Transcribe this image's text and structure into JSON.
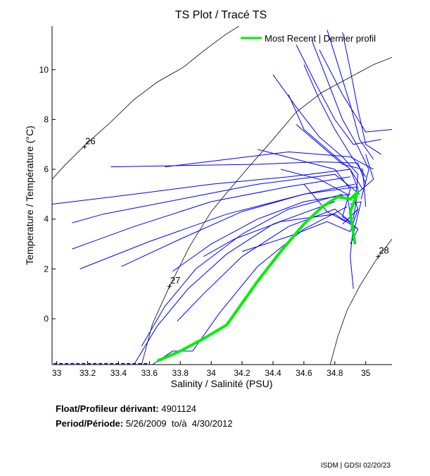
{
  "chart_data": {
    "type": "line",
    "title": "TS Plot / Tracé TS",
    "xlabel": "Salinity / Salinité (PSU)",
    "ylabel": "Temperature / Température (°C)",
    "xlim": [
      32.97,
      35.17
    ],
    "ylim": [
      -1.84,
      11.75
    ],
    "xticks": [
      33,
      33.2,
      33.4,
      33.6,
      33.8,
      34,
      34.2,
      34.4,
      34.6,
      34.8,
      35
    ],
    "xtick_labels": [
      "33",
      "33.2",
      "33.4",
      "33.6",
      "33.8",
      "34",
      "34.2",
      "34.4",
      "34.6",
      "34.8",
      "35"
    ],
    "yticks": [
      0,
      2,
      4,
      6,
      8,
      10
    ],
    "ytick_labels": [
      "0",
      "2",
      "4",
      "6",
      "8",
      "10"
    ],
    "grid": false,
    "legend": {
      "position": "top-right",
      "entries": [
        {
          "label": "Most Recent | Dernier profil",
          "color": "#00ee00"
        }
      ]
    },
    "isopycnals": [
      {
        "label": "26",
        "label_at": [
          33.18,
          6.9
        ],
        "points": [
          [
            32.97,
            5.6
          ],
          [
            33.05,
            6.15
          ],
          [
            33.18,
            6.95
          ],
          [
            33.35,
            7.9
          ],
          [
            33.5,
            8.8
          ],
          [
            33.65,
            9.5
          ],
          [
            33.82,
            10.1
          ],
          [
            33.95,
            10.75
          ],
          [
            34.09,
            11.4
          ],
          [
            34.18,
            11.75
          ]
        ]
      },
      {
        "label": "27",
        "label_at": [
          33.73,
          1.3
        ],
        "points": [
          [
            33.55,
            -1.84
          ],
          [
            33.62,
            -0.2
          ],
          [
            33.73,
            1.3
          ],
          [
            33.86,
            2.9
          ],
          [
            34.0,
            4.3
          ],
          [
            34.12,
            5.2
          ],
          [
            34.23,
            6.0
          ],
          [
            34.4,
            7.2
          ],
          [
            34.55,
            8.3
          ],
          [
            34.72,
            9.1
          ],
          [
            34.9,
            9.7
          ],
          [
            35.05,
            10.2
          ],
          [
            35.17,
            10.5
          ]
        ]
      },
      {
        "label": "28",
        "label_at": [
          35.08,
          2.5
        ],
        "points": [
          [
            34.77,
            -1.84
          ],
          [
            34.82,
            -0.7
          ],
          [
            34.88,
            0.35
          ],
          [
            34.96,
            1.3
          ],
          [
            35.06,
            2.3
          ],
          [
            35.17,
            3.2
          ]
        ]
      }
    ],
    "series": [
      {
        "name": "Most Recent | Dernier profil",
        "color": "#00ee00",
        "points": [
          [
            33.65,
            -1.7
          ],
          [
            33.8,
            -1.3
          ],
          [
            33.95,
            -0.8
          ],
          [
            34.1,
            -0.25
          ],
          [
            34.3,
            1.5
          ],
          [
            34.45,
            2.7
          ],
          [
            34.6,
            3.8
          ],
          [
            34.72,
            4.5
          ],
          [
            34.82,
            4.9
          ],
          [
            34.9,
            4.8
          ],
          [
            34.95,
            5.1
          ],
          [
            34.9,
            4.3
          ],
          [
            34.93,
            3.0
          ]
        ]
      },
      {
        "name": "profiles",
        "color": "#0000ff",
        "profiles": [
          [
            [
              32.97,
              4.6
            ],
            [
              33.5,
              5.0
            ],
            [
              34.0,
              5.4
            ],
            [
              34.5,
              5.7
            ],
            [
              34.9,
              6.0
            ],
            [
              34.95,
              5.2
            ],
            [
              34.92,
              4.0
            ]
          ],
          [
            [
              33.1,
              3.85
            ],
            [
              33.3,
              4.2
            ],
            [
              33.8,
              4.8
            ],
            [
              34.3,
              5.4
            ],
            [
              34.8,
              5.8
            ],
            [
              34.96,
              5.0
            ]
          ],
          [
            [
              33.1,
              2.8
            ],
            [
              33.5,
              3.7
            ],
            [
              34.0,
              4.7
            ],
            [
              34.5,
              5.3
            ],
            [
              34.9,
              5.7
            ]
          ],
          [
            [
              33.15,
              2.0
            ],
            [
              33.6,
              3.1
            ],
            [
              34.1,
              4.2
            ],
            [
              34.6,
              5.0
            ],
            [
              34.93,
              5.4
            ]
          ],
          [
            [
              33.42,
              2.1
            ],
            [
              33.8,
              3.2
            ],
            [
              34.2,
              4.3
            ],
            [
              34.6,
              5.0
            ],
            [
              34.95,
              5.3
            ]
          ],
          [
            [
              33.35,
              6.1
            ],
            [
              33.8,
              6.15
            ],
            [
              34.3,
              6.2
            ],
            [
              34.7,
              6.3
            ],
            [
              34.95,
              6.25
            ],
            [
              35.0,
              5.4
            ]
          ],
          [
            [
              33.7,
              6.1
            ],
            [
              34.1,
              6.4
            ],
            [
              34.5,
              6.7
            ],
            [
              34.9,
              6.5
            ],
            [
              35.05,
              6.0
            ]
          ],
          [
            [
              34.4,
              9.8
            ],
            [
              34.55,
              8.5
            ],
            [
              34.7,
              7.3
            ],
            [
              34.85,
              6.5
            ],
            [
              34.95,
              5.8
            ],
            [
              34.93,
              4.6
            ]
          ],
          [
            [
              34.5,
              9.0
            ],
            [
              34.6,
              7.6
            ],
            [
              34.75,
              6.8
            ],
            [
              34.9,
              6.0
            ],
            [
              34.98,
              5.2
            ]
          ],
          [
            [
              34.6,
              10.2
            ],
            [
              34.7,
              8.8
            ],
            [
              34.8,
              7.6
            ],
            [
              34.9,
              6.6
            ],
            [
              35.0,
              5.7
            ]
          ],
          [
            [
              34.65,
              11.2
            ],
            [
              34.75,
              9.6
            ],
            [
              34.85,
              8.0
            ],
            [
              34.95,
              6.9
            ],
            [
              35.02,
              6.0
            ],
            [
              34.97,
              4.8
            ]
          ],
          [
            [
              34.75,
              11.6
            ],
            [
              34.82,
              10.2
            ],
            [
              34.9,
              8.6
            ],
            [
              34.96,
              7.2
            ],
            [
              35.05,
              6.4
            ]
          ],
          [
            [
              34.85,
              11.5
            ],
            [
              34.9,
              10.0
            ],
            [
              34.95,
              8.4
            ],
            [
              35.0,
              7.0
            ],
            [
              35.1,
              6.6
            ]
          ],
          [
            [
              34.7,
              10.8
            ],
            [
              34.85,
              9.0
            ],
            [
              35.0,
              7.5
            ],
            [
              35.17,
              7.6
            ]
          ],
          [
            [
              34.55,
              11.0
            ],
            [
              34.68,
              9.4
            ],
            [
              34.8,
              8.0
            ],
            [
              34.92,
              7.0
            ],
            [
              35.1,
              7.2
            ]
          ],
          [
            [
              33.75,
              1.9
            ],
            [
              34.0,
              3.0
            ],
            [
              34.3,
              4.0
            ],
            [
              34.6,
              4.7
            ],
            [
              34.9,
              5.0
            ]
          ],
          [
            [
              33.55,
              -1.1
            ],
            [
              33.7,
              0.5
            ],
            [
              33.9,
              2.0
            ],
            [
              34.2,
              3.4
            ],
            [
              34.5,
              4.4
            ],
            [
              34.85,
              5.0
            ]
          ],
          [
            [
              33.5,
              -1.84
            ],
            [
              33.65,
              -0.3
            ],
            [
              33.85,
              1.2
            ],
            [
              34.1,
              2.6
            ],
            [
              34.4,
              3.8
            ],
            [
              34.8,
              4.7
            ]
          ],
          [
            [
              33.62,
              -1.84
            ],
            [
              33.75,
              -1.3
            ],
            [
              33.88,
              -1.3
            ],
            [
              34.05,
              0.2
            ],
            [
              34.3,
              2.1
            ],
            [
              34.6,
              3.6
            ],
            [
              34.88,
              4.5
            ]
          ],
          [
            [
              33.78,
              -0.1
            ],
            [
              33.95,
              1.0
            ],
            [
              34.2,
              2.5
            ],
            [
              34.5,
              3.7
            ],
            [
              34.8,
              4.4
            ],
            [
              34.92,
              3.8
            ],
            [
              34.9,
              2.5
            ],
            [
              34.92,
              1.2
            ]
          ],
          [
            [
              33.95,
              2.5
            ],
            [
              34.15,
              3.2
            ],
            [
              34.45,
              3.9
            ],
            [
              34.8,
              4.2
            ],
            [
              34.95,
              3.6
            ],
            [
              34.9,
              3.0
            ]
          ],
          [
            [
              34.2,
              2.7
            ],
            [
              34.5,
              3.3
            ],
            [
              34.75,
              3.9
            ],
            [
              34.9,
              3.5
            ],
            [
              34.95,
              4.4
            ],
            [
              34.85,
              3.8
            ]
          ],
          [
            [
              34.3,
              6.8
            ],
            [
              34.55,
              6.4
            ],
            [
              34.8,
              6.0
            ],
            [
              34.9,
              5.2
            ],
            [
              34.85,
              4.1
            ],
            [
              34.95,
              3.6
            ]
          ],
          [
            [
              34.45,
              6.0
            ],
            [
              34.7,
              5.6
            ],
            [
              34.88,
              5.0
            ],
            [
              34.92,
              3.4
            ],
            [
              34.97,
              4.7
            ],
            [
              34.9,
              4.6
            ]
          ],
          [
            [
              34.55,
              7.8
            ],
            [
              34.7,
              7.0
            ],
            [
              34.85,
              6.2
            ],
            [
              34.98,
              6.0
            ],
            [
              35.0,
              4.5
            ]
          ],
          [
            [
              34.6,
              5.4
            ],
            [
              34.75,
              4.3
            ],
            [
              34.87,
              3.9
            ],
            [
              34.95,
              4.4
            ],
            [
              34.92,
              4.9
            ],
            [
              35.05,
              5.6
            ],
            [
              35.0,
              6.6
            ]
          ]
        ]
      },
      {
        "name": "surface",
        "color": "#0000ff",
        "dashed": true,
        "points": [
          [
            32.98,
            -1.8
          ],
          [
            33.6,
            -1.8
          ]
        ]
      }
    ]
  },
  "info": {
    "float_label": "Float/Profileur dérivant:",
    "float_value": "4901124",
    "period_label": "Period/Période:",
    "period_value": "5/26/2009  to/à  4/30/2012"
  },
  "footer": "ISDM | GDSI 02/20/23"
}
